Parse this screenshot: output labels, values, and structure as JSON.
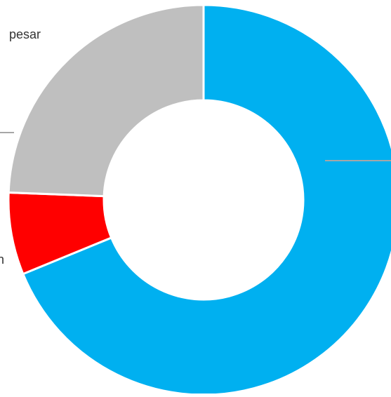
{
  "chart_data": {
    "type": "pie",
    "variant": "donut",
    "slices": [
      {
        "label": "",
        "value": 68.8,
        "color": "#00B0F0"
      },
      {
        "label": "",
        "value": 6.8,
        "color": "#FF0000"
      },
      {
        "label": "",
        "value": 24.4,
        "color": "#BFBFBF"
      }
    ],
    "partial_labels": [
      "pesar",
      "n"
    ],
    "leader_line_color": "#A6A6A6"
  }
}
